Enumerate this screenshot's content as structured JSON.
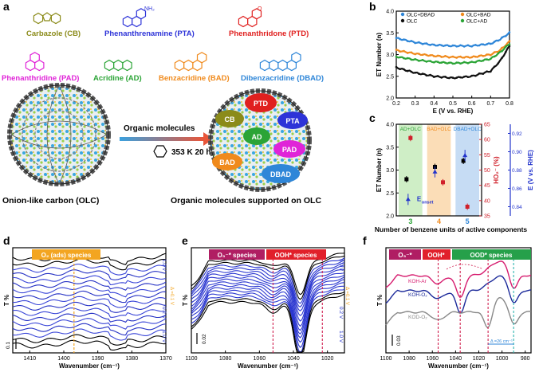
{
  "panels": {
    "a": "a",
    "b": "b",
    "c": "c",
    "d": "d",
    "e": "e",
    "f": "f"
  },
  "colors": {
    "cb": "#8b8b1a",
    "pta": "#2d33d8",
    "ptd": "#e0201f",
    "pad": "#e024d8",
    "ad": "#2ba436",
    "bad": "#f08a1c",
    "dbad": "#2e86d8",
    "orange_label": "#f3a521",
    "maroon_label": "#b01e63",
    "red_label": "#e1202b",
    "green_label": "#26a04a",
    "blue_curve": "#2233cc"
  },
  "molecules": [
    {
      "key": "cb",
      "name": "Carbazole (CB)"
    },
    {
      "key": "pta",
      "name": "Phenanthrenamine (PTA)",
      "sub": "NH₂"
    },
    {
      "key": "ptd",
      "name": "Phenanthridone (PTD)",
      "sub": "O"
    },
    {
      "key": "pad",
      "name": "Phenanthridine (PAD)"
    },
    {
      "key": "ad",
      "name": "Acridine (AD)"
    },
    {
      "key": "bad",
      "name": "Benzacridine (BAD)"
    },
    {
      "key": "dbad",
      "name": "Dibenzacridine (DBAD)"
    }
  ],
  "scheme": {
    "arrow_label": "Organic molecules",
    "condition": "353 K 20 h",
    "left_caption": "Onion-like carbon (OLC)",
    "right_caption": "Organic molecules supported on OLC",
    "ellipses": [
      "PTD",
      "CB",
      "PTA",
      "AD",
      "PAD",
      "BAD",
      "DBAD"
    ]
  },
  "chart_data": [
    {
      "panel": "b",
      "type": "line",
      "xlabel": "E (V vs. RHE)",
      "ylabel": "ET Number (n)",
      "xlim": [
        0.2,
        0.8
      ],
      "ylim": [
        2.0,
        4.0
      ],
      "xticks": [
        "0.2",
        "0.3",
        "0.4",
        "0.5",
        "0.6",
        "0.7",
        "0.8"
      ],
      "yticks": [
        "2.0",
        "2.5",
        "3.0",
        "3.5",
        "4.0"
      ],
      "series": [
        {
          "name": "OLC+DBAD",
          "color": "#2e86d8",
          "x": [
            0.2,
            0.3,
            0.4,
            0.5,
            0.6,
            0.7,
            0.75,
            0.8
          ],
          "values": [
            3.38,
            3.28,
            3.22,
            3.2,
            3.2,
            3.25,
            3.35,
            3.5
          ]
        },
        {
          "name": "OLC+BAD",
          "color": "#f08a1c",
          "x": [
            0.2,
            0.3,
            0.4,
            0.5,
            0.6,
            0.7,
            0.75,
            0.8
          ],
          "values": [
            3.1,
            3.02,
            2.97,
            2.94,
            2.94,
            3.0,
            3.1,
            3.3
          ]
        },
        {
          "name": "OLC",
          "color": "#111111",
          "x": [
            0.2,
            0.3,
            0.4,
            0.5,
            0.6,
            0.7,
            0.75,
            0.8
          ],
          "values": [
            2.7,
            2.58,
            2.5,
            2.46,
            2.5,
            2.62,
            2.85,
            3.2
          ]
        },
        {
          "name": "OLC+AD",
          "color": "#2ba436",
          "x": [
            0.2,
            0.3,
            0.4,
            0.5,
            0.6,
            0.7,
            0.75,
            0.8
          ],
          "values": [
            2.95,
            2.88,
            2.83,
            2.8,
            2.82,
            2.9,
            3.05,
            3.25
          ]
        }
      ]
    },
    {
      "panel": "c",
      "type": "scatter",
      "xlabel": "Number of benzene units of active components",
      "ylabel_left": "ET Number (n)",
      "ylabel_mid": "HO₂⁻ (%)",
      "ylabel_right": "E (V vs. RHE)",
      "categories": [
        "3",
        "4",
        "5"
      ],
      "regions": [
        "AD+OLC",
        "BAD+OLC",
        "DBAD+OLC"
      ],
      "ylim_left": [
        2.0,
        4.0
      ],
      "yticks_left": [
        "2.0",
        "2.5",
        "3.0",
        "3.5",
        "4.0"
      ],
      "ylim_mid": [
        35,
        65
      ],
      "yticks_mid": [
        "35",
        "40",
        "45",
        "50",
        "55",
        "60",
        "65"
      ],
      "ylim_right": [
        0.83,
        0.93
      ],
      "yticks_right": [
        "0.84",
        "0.86",
        "0.88",
        "0.90",
        "0.92"
      ],
      "et_number": [
        2.8,
        3.07,
        3.2
      ],
      "ho2_percent": [
        60.5,
        46,
        38
      ],
      "e_onset": [
        0.848,
        0.878,
        0.896
      ],
      "annotation": "E",
      "annotation_sub": "onset"
    },
    {
      "panel": "d",
      "type": "line",
      "xlabel": "Wavenumber (cm⁻¹)",
      "ylabel": "T %",
      "xlim": [
        1415,
        1370
      ],
      "xticks": [
        "1410",
        "1400",
        "1390",
        "1380",
        "1370"
      ],
      "species": "O₂ (ads) species",
      "marker": 1397,
      "scale": "0.1",
      "potentials": {
        "top": "1.0 V",
        "mid": "0.2 V",
        "bottom": "1.0 V",
        "step": "Δ =0.1 V"
      }
    },
    {
      "panel": "e",
      "type": "line",
      "xlabel": "Wavenumber (cm⁻¹)",
      "ylabel": "T %",
      "xlim": [
        1100,
        1010
      ],
      "xticks": [
        "1100",
        "1080",
        "1060",
        "1040",
        "1020"
      ],
      "species_a": "O₃⁻* species",
      "species_b": "OOH* species",
      "markers": [
        1052,
        1023
      ],
      "scale": "0.02",
      "potentials": {
        "top": "1.0 V",
        "mid": "0.2 V",
        "bottom": "1.0 V",
        "step": "Δ =0.1 V"
      }
    },
    {
      "panel": "f",
      "type": "line",
      "xlabel": "Wavenumber (cm⁻¹)",
      "ylabel": "T %",
      "xlim": [
        1100,
        975
      ],
      "xticks": [
        "1100",
        "1080",
        "1060",
        "1040",
        "1020",
        "1000",
        "980"
      ],
      "species_a": "O₃⁻*",
      "species_b": "OOH*",
      "species_c": "OOD* species",
      "series_labels": [
        "KOH-Ar",
        "KOH-O₂",
        "KOD-O₂"
      ],
      "scale": "0.03",
      "shift": "Δ =26 cm⁻¹"
    }
  ]
}
